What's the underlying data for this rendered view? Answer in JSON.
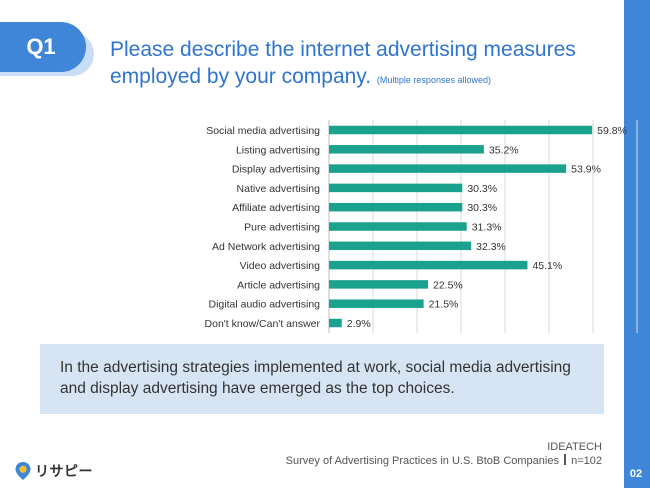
{
  "header": {
    "badge": "Q1",
    "title": "Please describe the internet advertising measures employed by your company.",
    "note": "(Multiple responses allowed)"
  },
  "chart_data": {
    "type": "bar",
    "orientation": "horizontal",
    "categories": [
      "Social media advertising",
      "Listing advertising",
      "Display advertising",
      "Native advertising",
      "Affiliate advertising",
      "Pure advertising",
      "Ad Network advertising",
      "Video advertising",
      "Article advertising",
      "Digital audio advertising",
      "Don't know/Can't answer"
    ],
    "values": [
      59.8,
      35.2,
      53.9,
      30.3,
      30.3,
      31.3,
      32.3,
      45.1,
      22.5,
      21.5,
      2.9
    ],
    "value_labels": [
      "59.8%",
      "35.2%",
      "53.9%",
      "30.3%",
      "30.3%",
      "31.3%",
      "32.3%",
      "45.1%",
      "22.5%",
      "21.5%",
      "2.9%"
    ],
    "xlim": [
      0,
      70
    ],
    "grid": true,
    "bar_color": "#1aa28f"
  },
  "summary": {
    "text": "In the advertising strategies implemented at work, social media advertising and display advertising have emerged as the top choices."
  },
  "source": {
    "company": "IDEATECH",
    "survey": "Survey of Advertising Practices in U.S. BtoB Companies",
    "sample": "n=102"
  },
  "logo": {
    "text": "リサピー"
  },
  "page": {
    "number": "02"
  },
  "colors": {
    "accent": "#3f86d8",
    "title": "#2f74d0",
    "bar": "#1aa28f",
    "summary_bg": "#d6e4f4"
  }
}
